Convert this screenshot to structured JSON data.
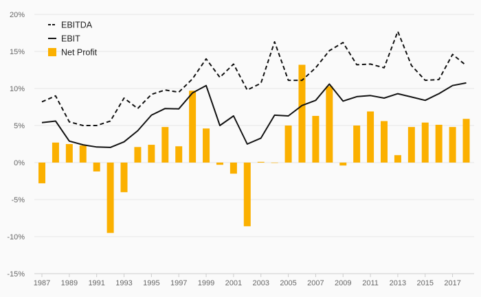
{
  "chart_data": {
    "type": "bar",
    "x": [
      1987,
      1988,
      1989,
      1990,
      1991,
      1992,
      1993,
      1994,
      1995,
      1996,
      1997,
      1998,
      1999,
      2000,
      2001,
      2002,
      2003,
      2004,
      2005,
      2006,
      2007,
      2008,
      2009,
      2010,
      2011,
      2012,
      2013,
      2014,
      2015,
      2016,
      2017,
      2018
    ],
    "x_tick_labels": [
      "1987",
      "1989",
      "1991",
      "1993",
      "1995",
      "1997",
      "1999",
      "2001",
      "2003",
      "2005",
      "2007",
      "2009",
      "2011",
      "2013",
      "2015",
      "2017"
    ],
    "y_tick_labels": [
      "20%",
      "15%",
      "10%",
      "5%",
      "0%",
      "-5%",
      "-10%",
      "-15%"
    ],
    "ylim": [
      -15,
      20
    ],
    "y_unit": "%",
    "grid": "horizontal",
    "legend_position": "top-left",
    "series": [
      {
        "name": "EBITDA",
        "type": "line",
        "style": "dashed",
        "color": "#111111",
        "values": [
          8.2,
          9.0,
          5.5,
          5.0,
          5.0,
          5.6,
          8.7,
          7.3,
          9.2,
          9.8,
          9.5,
          11.3,
          14.0,
          11.5,
          13.3,
          9.8,
          10.7,
          16.3,
          11.1,
          11.1,
          12.8,
          15.1,
          16.2,
          13.2,
          13.3,
          12.8,
          17.7,
          13.1,
          11.1,
          11.2,
          14.6,
          13.1
        ]
      },
      {
        "name": "EBIT",
        "type": "line",
        "style": "solid",
        "color": "#111111",
        "values": [
          5.4,
          5.6,
          2.9,
          2.4,
          2.1,
          2.05,
          2.8,
          4.3,
          6.4,
          7.3,
          7.25,
          9.4,
          10.4,
          5.0,
          6.3,
          2.5,
          3.3,
          6.4,
          6.3,
          7.7,
          8.4,
          10.6,
          8.3,
          8.9,
          9.05,
          8.7,
          9.3,
          8.85,
          8.4,
          9.3,
          10.4,
          10.75
        ]
      },
      {
        "name": "Net Profit",
        "type": "bar",
        "color": "#fbb000",
        "values": [
          -2.8,
          2.7,
          2.5,
          2.3,
          -1.2,
          -9.5,
          -4.0,
          2.1,
          2.4,
          4.8,
          2.2,
          9.7,
          4.6,
          -0.3,
          -1.5,
          -8.6,
          0.1,
          0,
          5.0,
          13.2,
          6.3,
          10.3,
          -0.4,
          5.0,
          6.9,
          5.6,
          1.0,
          4.8,
          5.4,
          5.1,
          4.8,
          5.9
        ]
      }
    ]
  }
}
